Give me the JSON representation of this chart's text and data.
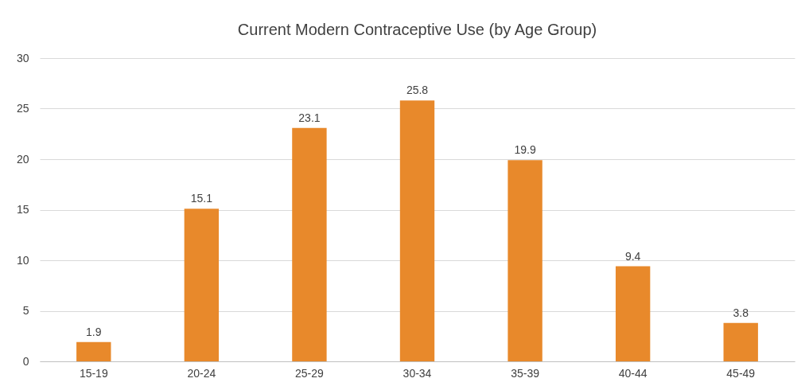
{
  "chart_data": {
    "type": "bar",
    "title": "Current Modern Contraceptive Use  (by Age Group)",
    "categories": [
      "15-19",
      "20-24",
      "25-29",
      "30-34",
      "35-39",
      "40-44",
      "45-49"
    ],
    "values": [
      1.9,
      15.1,
      23.1,
      25.8,
      19.9,
      9.4,
      3.8
    ],
    "color": "#e8892b",
    "ylim": [
      0,
      30
    ],
    "yticks": [
      0,
      5,
      10,
      15,
      20,
      25,
      30
    ],
    "grid": "y",
    "data_labels": true
  }
}
